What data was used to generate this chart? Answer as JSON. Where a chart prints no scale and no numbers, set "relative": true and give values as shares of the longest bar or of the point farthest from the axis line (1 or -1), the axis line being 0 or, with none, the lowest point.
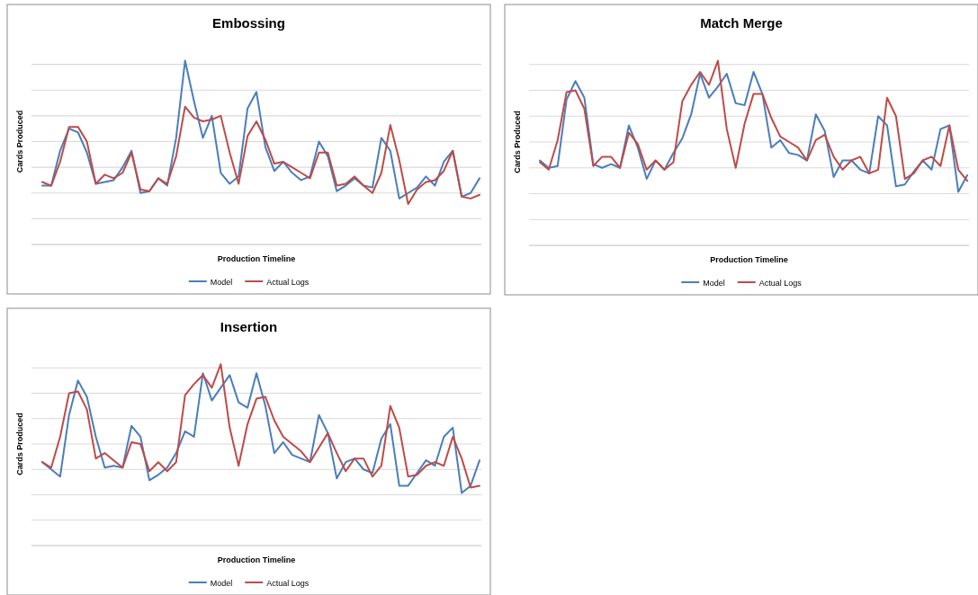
{
  "chart_data": [
    {
      "type": "line",
      "title": "Embossing",
      "xlabel": "Production Timeline",
      "ylabel": "Cards Produced",
      "relative": true,
      "grid": "y",
      "legend": "bottom",
      "categories": [
        null,
        null,
        null,
        null,
        null,
        null,
        null,
        null,
        null,
        null,
        null,
        null,
        null,
        null,
        null,
        null,
        null,
        null,
        null,
        null,
        null,
        null,
        null,
        null,
        null,
        null,
        null,
        null,
        null,
        null,
        null,
        null,
        null,
        null,
        null,
        null,
        null,
        null,
        null,
        null,
        null,
        null,
        null,
        null,
        null,
        null,
        null,
        null,
        null,
        null
      ],
      "series": [
        {
          "name": "Model",
          "color": "#4a7ebb",
          "values": [
            0.32,
            0.32,
            0.51,
            0.63,
            0.61,
            0.5,
            0.33,
            0.34,
            0.35,
            0.42,
            0.51,
            0.28,
            0.29,
            0.36,
            0.32,
            0.58,
            1.0,
            0.78,
            0.58,
            0.7,
            0.39,
            0.33,
            0.37,
            0.74,
            0.83,
            0.53,
            0.4,
            0.45,
            0.39,
            0.35,
            0.37,
            0.56,
            0.48,
            0.29,
            0.32,
            0.36,
            0.32,
            0.31,
            0.58,
            0.51,
            0.25,
            0.28,
            0.31,
            0.37,
            0.32,
            0.45,
            0.51,
            0.26,
            0.28,
            0.36
          ]
        },
        {
          "name": "Actual Logs",
          "color": "#be4b48",
          "values": [
            0.34,
            0.32,
            0.45,
            0.64,
            0.64,
            0.56,
            0.33,
            0.38,
            0.36,
            0.39,
            0.5,
            0.3,
            0.29,
            0.36,
            0.33,
            0.48,
            0.75,
            0.69,
            0.67,
            0.68,
            0.7,
            0.5,
            0.33,
            0.59,
            0.67,
            0.57,
            0.44,
            0.45,
            0.42,
            0.39,
            0.36,
            0.5,
            0.5,
            0.32,
            0.33,
            0.37,
            0.32,
            0.28,
            0.39,
            0.65,
            0.46,
            0.22,
            0.3,
            0.34,
            0.35,
            0.4,
            0.51,
            0.26,
            0.25,
            0.27
          ]
        }
      ]
    },
    {
      "type": "line",
      "title": "Match Merge",
      "xlabel": "Production Timeline",
      "ylabel": "Cards Produced",
      "relative": true,
      "grid": "y",
      "legend": "bottom",
      "categories": [
        null,
        null,
        null,
        null,
        null,
        null,
        null,
        null,
        null,
        null,
        null,
        null,
        null,
        null,
        null,
        null,
        null,
        null,
        null,
        null,
        null,
        null,
        null,
        null,
        null,
        null,
        null,
        null,
        null,
        null,
        null,
        null,
        null,
        null,
        null,
        null,
        null,
        null,
        null,
        null,
        null,
        null,
        null,
        null,
        null,
        null,
        null,
        null,
        null
      ],
      "series": [
        {
          "name": "Model",
          "color": "#4a7ebb",
          "values": [
            0.46,
            0.42,
            0.43,
            0.79,
            0.89,
            0.8,
            0.44,
            0.42,
            0.44,
            0.42,
            0.65,
            0.53,
            0.36,
            0.46,
            0.41,
            0.5,
            0.58,
            0.71,
            0.93,
            0.8,
            0.86,
            0.93,
            0.77,
            0.76,
            0.94,
            0.82,
            0.53,
            0.57,
            0.5,
            0.49,
            0.46,
            0.71,
            0.62,
            0.37,
            0.46,
            0.46,
            0.41,
            0.39,
            0.7,
            0.65,
            0.32,
            0.33,
            0.4,
            0.46,
            0.41,
            0.63,
            0.65,
            0.29,
            0.38
          ]
        },
        {
          "name": "Actual Logs",
          "color": "#be4b48",
          "values": [
            0.45,
            0.41,
            0.57,
            0.83,
            0.84,
            0.74,
            0.43,
            0.48,
            0.48,
            0.42,
            0.61,
            0.55,
            0.41,
            0.46,
            0.41,
            0.45,
            0.78,
            0.87,
            0.94,
            0.87,
            1.0,
            0.63,
            0.42,
            0.66,
            0.82,
            0.82,
            0.69,
            0.59,
            0.56,
            0.53,
            0.46,
            0.57,
            0.6,
            0.48,
            0.41,
            0.46,
            0.48,
            0.39,
            0.41,
            0.8,
            0.7,
            0.36,
            0.39,
            0.46,
            0.48,
            0.43,
            0.65,
            0.41,
            0.35
          ]
        }
      ]
    },
    {
      "type": "line",
      "title": "Insertion",
      "xlabel": "Production Timeline",
      "ylabel": "Cards Produced",
      "relative": true,
      "grid": "y",
      "legend": "bottom",
      "categories": [
        null,
        null,
        null,
        null,
        null,
        null,
        null,
        null,
        null,
        null,
        null,
        null,
        null,
        null,
        null,
        null,
        null,
        null,
        null,
        null,
        null,
        null,
        null,
        null,
        null,
        null,
        null,
        null,
        null,
        null,
        null,
        null,
        null,
        null,
        null,
        null,
        null,
        null,
        null,
        null,
        null,
        null,
        null,
        null,
        null,
        null,
        null,
        null,
        null,
        null
      ],
      "series": [
        {
          "name": "Model",
          "color": "#4a7ebb",
          "values": [
            0.46,
            0.42,
            0.38,
            0.72,
            0.91,
            0.82,
            0.6,
            0.43,
            0.44,
            0.43,
            0.66,
            0.6,
            0.36,
            0.39,
            0.43,
            0.51,
            0.63,
            0.6,
            0.95,
            0.8,
            0.87,
            0.94,
            0.79,
            0.76,
            0.95,
            0.77,
            0.51,
            0.57,
            0.5,
            0.48,
            0.46,
            0.72,
            0.62,
            0.37,
            0.46,
            0.48,
            0.42,
            0.4,
            0.59,
            0.67,
            0.33,
            0.33,
            0.4,
            0.47,
            0.44,
            0.6,
            0.65,
            0.29,
            0.33,
            0.47
          ]
        },
        {
          "name": "Actual Logs",
          "color": "#be4b48",
          "values": [
            0.46,
            0.43,
            0.6,
            0.84,
            0.85,
            0.75,
            0.48,
            0.51,
            0.47,
            0.43,
            0.57,
            0.56,
            0.41,
            0.46,
            0.41,
            0.46,
            0.83,
            0.89,
            0.94,
            0.87,
            1.0,
            0.65,
            0.44,
            0.67,
            0.81,
            0.82,
            0.69,
            0.6,
            0.56,
            0.52,
            0.46,
            0.54,
            0.62,
            0.51,
            0.41,
            0.48,
            0.48,
            0.38,
            0.44,
            0.77,
            0.65,
            0.38,
            0.39,
            0.44,
            0.46,
            0.44,
            0.6,
            0.48,
            0.32,
            0.33
          ]
        }
      ]
    }
  ]
}
